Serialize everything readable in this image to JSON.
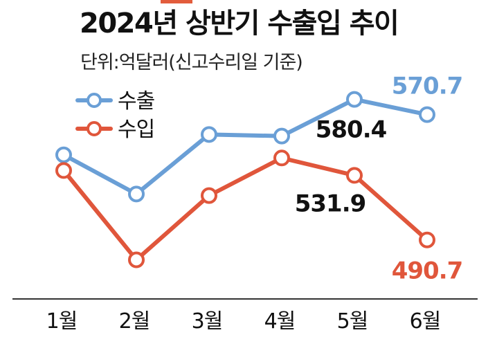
{
  "title": "2024년 상반기 수출입 추이",
  "subtitle": "단위:억달러(신고수리일 기준)",
  "colors": {
    "export": "#6a9fd6",
    "import": "#e0563b",
    "label_dark": "#111111",
    "axis": "#333333"
  },
  "chart_data": {
    "type": "line",
    "title": "2024년 상반기 수출입 추이",
    "subtitle": "단위:억달러(신고수리일 기준)",
    "categories": [
      "1월",
      "2월",
      "3월",
      "4월",
      "5월",
      "6월"
    ],
    "series": [
      {
        "name": "수출",
        "color": "#6a9fd6",
        "values": [
          545,
          520,
          558,
          557,
          580.4,
          570.7
        ]
      },
      {
        "name": "수입",
        "color": "#e0563b",
        "values": [
          535,
          478,
          519,
          543,
          531.9,
          490.7
        ]
      }
    ],
    "data_labels": [
      {
        "series": "수출",
        "index": 4,
        "text": "580.4",
        "color": "#111111"
      },
      {
        "series": "수출",
        "index": 5,
        "text": "570.7",
        "color": "#6a9fd6"
      },
      {
        "series": "수입",
        "index": 4,
        "text": "531.9",
        "color": "#111111"
      },
      {
        "series": "수입",
        "index": 5,
        "text": "490.7",
        "color": "#e0563b"
      }
    ],
    "legend_position": "top-left",
    "grid": false
  }
}
